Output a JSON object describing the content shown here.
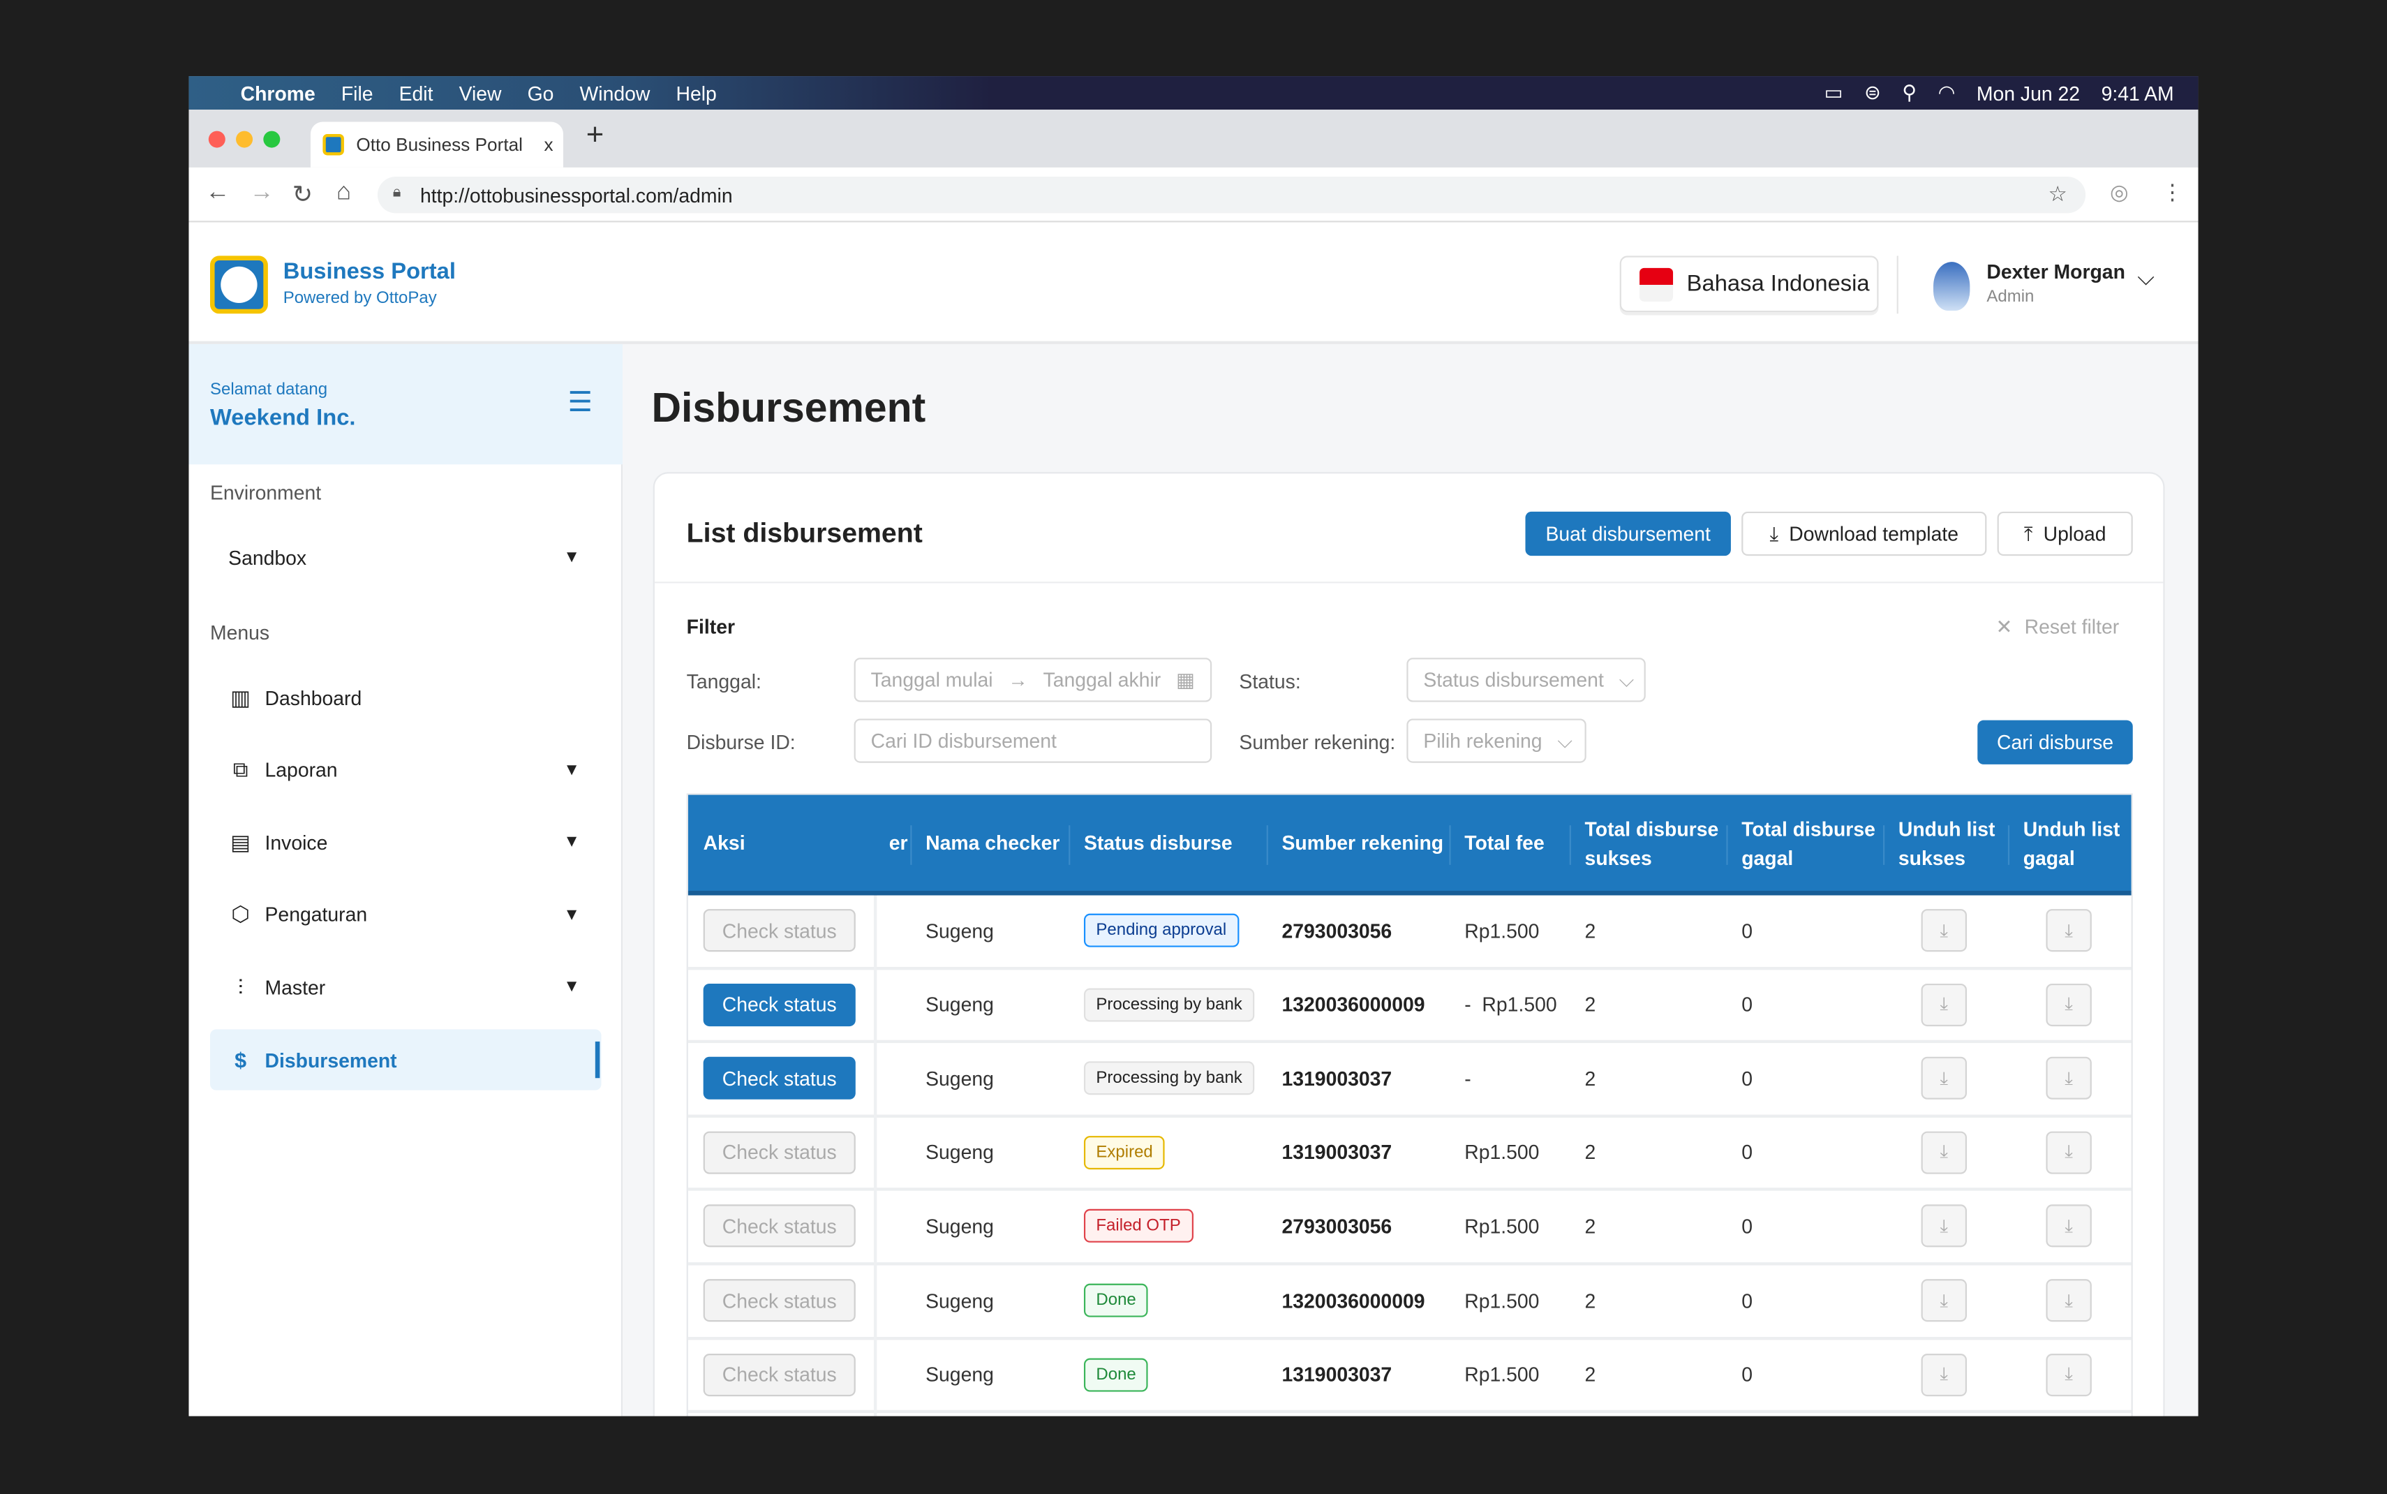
{
  "menubar": {
    "apple": "",
    "items": [
      "Chrome",
      "File",
      "Edit",
      "View",
      "Go",
      "Window",
      "Help"
    ],
    "date": "Mon Jun 22",
    "time": "9:41 AM"
  },
  "browser": {
    "tab_title": "Otto Business Portal",
    "tab_close": "x",
    "new_tab": "+",
    "url": "http://ottobusinessportal.com/admin"
  },
  "header": {
    "brand": "Business Portal",
    "powered": "Powered by OttoPay",
    "language": "Bahasa Indonesia",
    "user_name": "Dexter Morgan",
    "user_role": "Admin"
  },
  "sidebar": {
    "welcome": "Selamat datang",
    "company": "Weekend Inc.",
    "env_label": "Environment",
    "env_value": "Sandbox",
    "menus_label": "Menus",
    "items": [
      {
        "label": "Dashboard",
        "icon": "dashboard-icon",
        "glyph": "▥",
        "chev": false
      },
      {
        "label": "Laporan",
        "icon": "report-icon",
        "glyph": "⧉",
        "chev": true
      },
      {
        "label": "Invoice",
        "icon": "invoice-icon",
        "glyph": "▤",
        "chev": true
      },
      {
        "label": "Pengaturan",
        "icon": "settings-icon",
        "glyph": "⬡",
        "chev": true
      },
      {
        "label": "Master",
        "icon": "sliders-icon",
        "glyph": "⫶",
        "chev": true
      },
      {
        "label": "Disbursement",
        "icon": "disbursement-icon",
        "glyph": "$",
        "chev": false,
        "active": true
      }
    ]
  },
  "page": {
    "title": "Disbursement",
    "card_title": "List disbursement",
    "create": "Buat disbursement",
    "download": "Download template",
    "upload": "Upload"
  },
  "filter": {
    "title": "Filter",
    "reset": "Reset filter",
    "tanggal_label": "Tanggal:",
    "start_ph": "Tanggal mulai",
    "end_ph": "Tanggal akhir",
    "status_label": "Status:",
    "status_ph": "Status disbursement",
    "id_label": "Disburse ID:",
    "id_ph": "Cari ID disbursement",
    "source_label": "Sumber rekening:",
    "source_ph": "Pilih rekening",
    "search": "Cari disburse"
  },
  "table": {
    "headers": [
      "Aksi",
      "er",
      "Nama checker",
      "Status disburse",
      "Sumber rekening",
      "Total fee",
      "Total disburse sukses",
      "Total disburse gagal",
      "Unduh list sukses",
      "Unduh list gagal"
    ],
    "rows": [
      {
        "action": "Check status",
        "enabled": false,
        "checker": "Sugeng",
        "status": "Pending approval",
        "tone": "blue",
        "account": "2793003056",
        "fee": "Rp1.500",
        "ok": "2",
        "fail": "0"
      },
      {
        "action": "Check status",
        "enabled": true,
        "checker": "Sugeng",
        "status": "Processing by bank",
        "tone": "gray",
        "account": "1320036000009",
        "fee": "-  Rp1.500",
        "ok": "2",
        "fail": "0"
      },
      {
        "action": "Check status",
        "enabled": true,
        "checker": "Sugeng",
        "status": "Processing by bank",
        "tone": "gray",
        "account": "1319003037",
        "fee": "-",
        "ok": "2",
        "fail": "0"
      },
      {
        "action": "Check status",
        "enabled": false,
        "checker": "Sugeng",
        "status": "Expired",
        "tone": "yellow",
        "account": "1319003037",
        "fee": "Rp1.500",
        "ok": "2",
        "fail": "0"
      },
      {
        "action": "Check status",
        "enabled": false,
        "checker": "Sugeng",
        "status": "Failed OTP",
        "tone": "red",
        "account": "2793003056",
        "fee": "Rp1.500",
        "ok": "2",
        "fail": "0"
      },
      {
        "action": "Check status",
        "enabled": false,
        "checker": "Sugeng",
        "status": "Done",
        "tone": "green",
        "account": "1320036000009",
        "fee": "Rp1.500",
        "ok": "2",
        "fail": "0"
      },
      {
        "action": "Check status",
        "enabled": false,
        "checker": "Sugeng",
        "status": "Done",
        "tone": "green",
        "account": "1319003037",
        "fee": "Rp1.500",
        "ok": "2",
        "fail": "0"
      }
    ]
  },
  "colors": {
    "primary": "#1e78be",
    "badge_blue": "#1890ff",
    "badge_yellow": "#d4a300",
    "badge_red": "#d9363e",
    "badge_green": "#27a844"
  }
}
